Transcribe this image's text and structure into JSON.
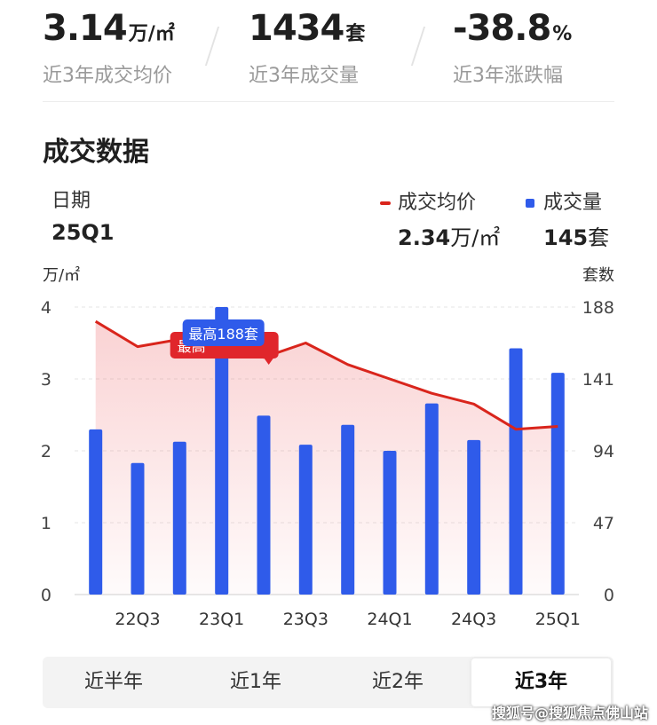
{
  "summary": {
    "avg_price": {
      "value": "3.14",
      "unit": "万/㎡",
      "label": "近3年成交均价"
    },
    "volume": {
      "value": "1434",
      "unit": "套",
      "label": "近3年成交量"
    },
    "change": {
      "value": "-38.8",
      "unit": "%",
      "label": "近3年涨跌幅"
    }
  },
  "section": {
    "title": "成交数据"
  },
  "detail": {
    "date_label": "日期",
    "date_value": "25Q1",
    "price_legend": "成交均价",
    "price_value": "2.34",
    "price_unit": "万/㎡",
    "volume_legend": "成交量",
    "volume_value": "145",
    "volume_unit": "套"
  },
  "chart_data": {
    "type": "bar+line",
    "left_axis_label": "万/㎡",
    "right_axis_label": "套数",
    "left_ticks": [
      "0",
      "1",
      "2",
      "3",
      "4"
    ],
    "right_ticks": [
      "0",
      "47",
      "94",
      "141",
      "188"
    ],
    "left_range": [
      0,
      4
    ],
    "right_range": [
      0,
      188
    ],
    "x_tick_labels": [
      "22Q3",
      "23Q1",
      "23Q3",
      "24Q1",
      "24Q3",
      "25Q1"
    ],
    "periods": [
      "22Q2",
      "22Q3",
      "22Q4",
      "23Q1",
      "23Q2",
      "23Q3",
      "23Q4",
      "24Q1",
      "24Q2",
      "24Q3",
      "24Q4",
      "25Q1"
    ],
    "series": [
      {
        "name": "成交量",
        "type": "bar",
        "axis": "right",
        "color": "#2f5bea",
        "values": [
          108,
          86,
          100,
          188,
          117,
          98,
          111,
          94,
          125,
          101,
          161,
          145
        ]
      },
      {
        "name": "成交均价",
        "type": "line",
        "axis": "left",
        "color": "#d9251c",
        "values": [
          3.8,
          3.45,
          3.55,
          3.5,
          3.3,
          3.5,
          3.2,
          3.0,
          2.8,
          2.65,
          2.3,
          2.34
        ]
      }
    ],
    "annotations": {
      "max_badge": "最高188套",
      "obscured_badge": "最高"
    }
  },
  "ranges": [
    {
      "label": "近半年",
      "active": false
    },
    {
      "label": "近1年",
      "active": false
    },
    {
      "label": "近2年",
      "active": false
    },
    {
      "label": "近3年",
      "active": true
    }
  ],
  "watermark": "搜狐号@搜狐焦点佛山站"
}
